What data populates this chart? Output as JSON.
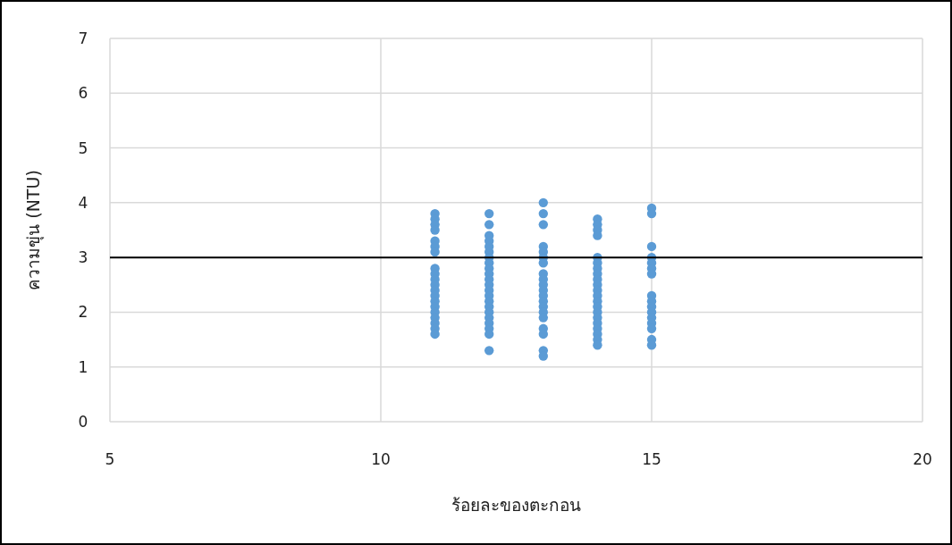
{
  "chart_data": {
    "type": "scatter",
    "xlabel": "ร้อยละของตะกอน",
    "ylabel": "ความขุ่น (NTU)",
    "xlim": [
      5,
      20
    ],
    "xticks": [
      5,
      10,
      15,
      20
    ],
    "ylim": [
      0,
      7
    ],
    "yticks": [
      0,
      1,
      2,
      3,
      4,
      5,
      6,
      7
    ],
    "grid": true,
    "marker": "circle",
    "ref_lines": [
      {
        "axis": "y",
        "value": 3,
        "color": "#000000"
      }
    ],
    "series": [
      {
        "color": "#5b9bd5",
        "x": [
          11,
          11,
          11,
          11,
          11,
          11,
          11,
          11,
          11,
          11,
          11,
          11,
          11,
          11,
          11,
          11,
          11,
          11,
          11,
          11,
          12,
          12,
          12,
          12,
          12,
          12,
          12,
          12,
          12,
          12,
          12,
          12,
          12,
          12,
          12,
          12,
          12,
          12,
          12,
          12,
          12,
          12,
          13,
          13,
          13,
          13,
          13,
          13,
          13,
          13,
          13,
          13,
          13,
          13,
          13,
          13,
          13,
          13,
          13,
          13,
          13,
          13,
          14,
          14,
          14,
          14,
          14,
          14,
          14,
          14,
          14,
          14,
          14,
          14,
          14,
          14,
          14,
          14,
          14,
          14,
          14,
          14,
          14,
          15,
          15,
          15,
          15,
          15,
          15,
          15,
          15,
          15,
          15,
          15,
          15,
          15,
          15,
          15,
          15
        ],
        "values": [
          3.8,
          3.7,
          3.6,
          3.5,
          3.3,
          3.2,
          3.1,
          2.8,
          2.7,
          2.6,
          2.5,
          2.4,
          2.3,
          2.2,
          2.1,
          2.0,
          1.9,
          1.8,
          1.7,
          1.6,
          3.8,
          3.6,
          3.4,
          3.3,
          3.2,
          3.1,
          3.0,
          2.9,
          2.8,
          2.7,
          2.6,
          2.5,
          2.4,
          2.3,
          2.2,
          2.1,
          2.0,
          1.9,
          1.8,
          1.7,
          1.6,
          1.3,
          4.0,
          3.8,
          3.6,
          3.2,
          3.1,
          3.0,
          2.9,
          2.7,
          2.6,
          2.5,
          2.4,
          2.3,
          2.2,
          2.1,
          2.0,
          1.9,
          1.7,
          1.6,
          1.3,
          1.2,
          3.7,
          3.6,
          3.5,
          3.4,
          3.0,
          2.9,
          2.8,
          2.7,
          2.6,
          2.5,
          2.4,
          2.3,
          2.2,
          2.1,
          2.0,
          1.9,
          1.8,
          1.7,
          1.6,
          1.5,
          1.4,
          3.9,
          3.8,
          3.2,
          3.0,
          2.9,
          2.8,
          2.7,
          2.3,
          2.2,
          2.1,
          2.0,
          1.9,
          1.8,
          1.7,
          1.5,
          1.4
        ]
      }
    ]
  }
}
